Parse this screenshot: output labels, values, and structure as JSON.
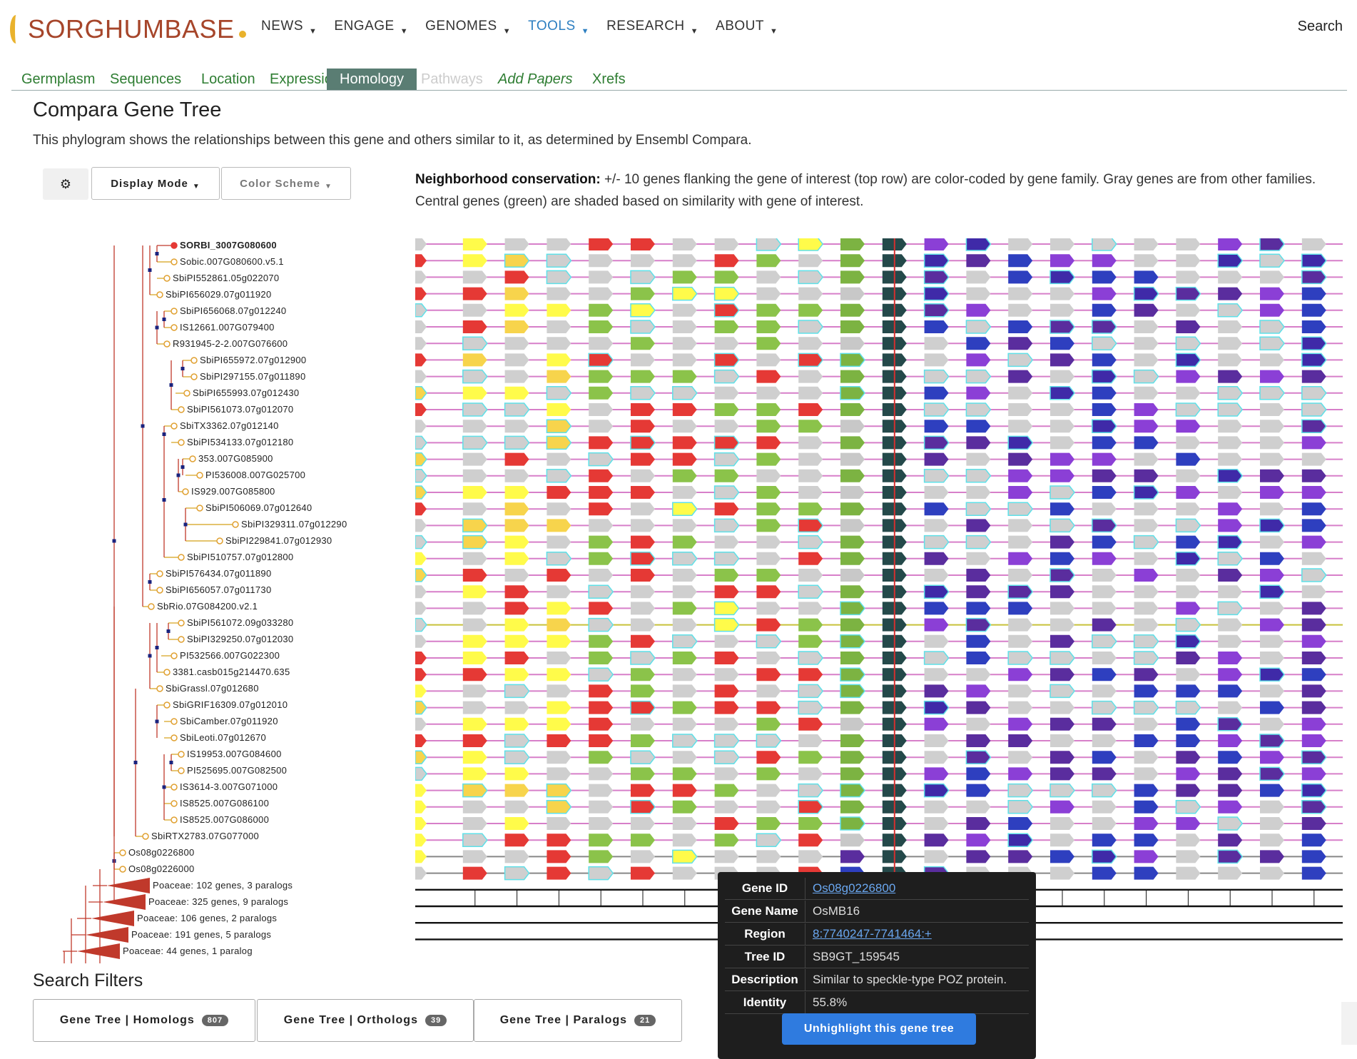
{
  "brand": {
    "name": "SORGHUMBASE"
  },
  "nav": {
    "items": [
      {
        "label": "NEWS",
        "active": false
      },
      {
        "label": "ENGAGE",
        "active": false
      },
      {
        "label": "GENOMES",
        "active": false
      },
      {
        "label": "TOOLS",
        "active": true
      },
      {
        "label": "RESEARCH",
        "active": false
      },
      {
        "label": "ABOUT",
        "active": false
      }
    ],
    "search_label": "Search"
  },
  "tabs": [
    {
      "label": "Germplasm",
      "state": "normal"
    },
    {
      "label": "Sequences",
      "state": "normal"
    },
    {
      "label": "Location",
      "state": "normal"
    },
    {
      "label": "Expression",
      "state": "normal"
    },
    {
      "label": "Homology",
      "state": "active"
    },
    {
      "label": "Pathways",
      "state": "disabled"
    },
    {
      "label": "Add Papers",
      "state": "italic"
    },
    {
      "label": "Xrefs",
      "state": "normal"
    }
  ],
  "page": {
    "title": "Compara Gene Tree",
    "description": "This phylogram shows the relationships between this gene and others similar to it, as determined by Ensembl Compara."
  },
  "controls": {
    "gear_icon": "gear-icon",
    "display_mode": "Display Mode",
    "color_scheme": "Color Scheme"
  },
  "conservation": {
    "heading": "Neighborhood conservation:",
    "text": " +/- 10 genes flanking the gene of interest (top row) are color-coded by gene family. Gray genes are from other families. Central genes (green) are shaded based on similarity with gene of interest."
  },
  "tree": {
    "leaves": [
      "SORBI_3007G080600",
      "Sobic.007G080600.v5.1",
      "SbiPI552861.05g022070",
      "SbiPI656029.07g011920",
      "SbiPI656068.07g012240",
      "IS12661.007G079400",
      "R931945-2-2.007G076600",
      "SbiPI655972.07g012900",
      "SbiPI297155.07g011890",
      "SbiPI655993.07g012430",
      "SbiPI561073.07g012070",
      "SbiTX3362.07g012140",
      "SbiPI534133.07g012180",
      "353.007G085900",
      "PI536008.007G025700",
      "IS929.007G085800",
      "SbiPI506069.07g012640",
      "SbiPI329311.07g012290",
      "SbiPI229841.07g012930",
      "SbiPI510757.07g012800",
      "SbiPI576434.07g011890",
      "SbiPI656057.07g011730",
      "SbRio.07G084200.v2.1",
      "SbiPI561072.09g033280",
      "SbiPI329250.07g012030",
      "PI532566.007G022300",
      "3381.casb015g214470.635",
      "SbiGrassl.07g012680",
      "SbiGRIF16309.07g012010",
      "SbiCamber.07g011920",
      "SbiLeoti.07g012670",
      "IS19953.007G084600",
      "PI525695.007G082500",
      "IS3614-3.007G071000",
      "IS8525.007G086100",
      "IS8525.007G086000",
      "SbiRTX2783.07G077000",
      "Os08g0226800",
      "Os08g0226000"
    ],
    "collapsed": [
      "Poaceae: 102 genes, 3 paralogs",
      "Poaceae: 325 genes, 9 paralogs",
      "Poaceae: 106 genes, 2 paralogs",
      "Poaceae: 191 genes, 5 paralogs",
      "Poaceae: 44 genes, 1 paralog"
    ]
  },
  "tooltip": {
    "rows": [
      {
        "key": "Gene ID",
        "value": "Os08g0226800",
        "link": true
      },
      {
        "key": "Gene Name",
        "value": "OsMB16",
        "link": false
      },
      {
        "key": "Region",
        "value": "8:7740247-7741464:+",
        "link": true
      },
      {
        "key": "Tree ID",
        "value": "SB9GT_159545",
        "link": false
      },
      {
        "key": "Description",
        "value": "Similar to speckle-type POZ protein.",
        "link": false
      },
      {
        "key": "Identity",
        "value": "55.8%",
        "link": false
      }
    ],
    "button": "Unhighlight this gene tree"
  },
  "search_filters": {
    "title": "Search Filters",
    "buttons": [
      {
        "label": "Gene Tree | Homologs",
        "count": "807"
      },
      {
        "label": "Gene Tree | Orthologs",
        "count": "39"
      },
      {
        "label": "Gene Tree | Paralogs",
        "count": "21"
      }
    ]
  },
  "colors": {
    "accent_green": "#2e7d32",
    "active_tab": "#5a7d73",
    "tree_red": "#c0392b",
    "focus_line": "#d32f2f",
    "central_dark": "#24494a"
  }
}
